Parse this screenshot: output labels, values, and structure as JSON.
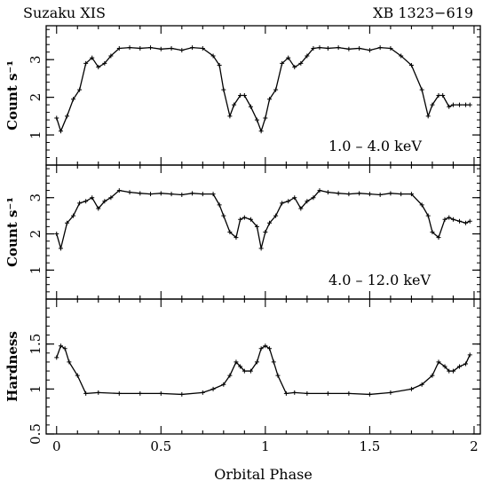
{
  "header": {
    "left_label": "Suzaku XIS",
    "right_label": "XB 1323−619"
  },
  "chart_data": [
    {
      "type": "line",
      "panel": "top",
      "annotation": "1.0 – 4.0 keV",
      "ylabel": "Count s⁻¹",
      "xlim": [
        -0.05,
        2.03
      ],
      "ylim": [
        0.2,
        3.9
      ],
      "yticks": [
        1,
        2,
        3
      ],
      "ytick_labels": [
        "1",
        "2",
        "3"
      ],
      "x": [
        0,
        0.02,
        0.05,
        0.08,
        0.11,
        0.14,
        0.17,
        0.2,
        0.23,
        0.26,
        0.3,
        0.35,
        0.4,
        0.45,
        0.5,
        0.55,
        0.6,
        0.65,
        0.7,
        0.75,
        0.78,
        0.8,
        0.83,
        0.85,
        0.88,
        0.9,
        0.93,
        0.96,
        0.98,
        1,
        1.02,
        1.05,
        1.08,
        1.11,
        1.14,
        1.17,
        1.2,
        1.23,
        1.26,
        1.3,
        1.35,
        1.4,
        1.45,
        1.5,
        1.55,
        1.6,
        1.65,
        1.7,
        1.75,
        1.78,
        1.8,
        1.83,
        1.85,
        1.88,
        1.9,
        1.93,
        1.96,
        1.98
      ],
      "values": [
        1.45,
        1.1,
        1.5,
        1.95,
        2.2,
        2.9,
        3.05,
        2.8,
        2.9,
        3.1,
        3.3,
        3.32,
        3.3,
        3.32,
        3.28,
        3.3,
        3.25,
        3.32,
        3.3,
        3.1,
        2.85,
        2.2,
        1.5,
        1.8,
        2.05,
        2.05,
        1.75,
        1.4,
        1.1,
        1.45,
        1.95,
        2.2,
        2.9,
        3.05,
        2.8,
        2.9,
        3.1,
        3.3,
        3.32,
        3.3,
        3.32,
        3.28,
        3.3,
        3.25,
        3.32,
        3.3,
        3.1,
        2.85,
        2.2,
        1.5,
        1.8,
        2.05,
        2.05,
        1.75,
        1.8,
        1.8,
        1.8,
        1.8
      ]
    },
    {
      "type": "line",
      "panel": "middle",
      "annotation": "4.0 – 12.0 keV",
      "ylabel": "Count s⁻¹",
      "xlim": [
        -0.05,
        2.03
      ],
      "ylim": [
        0.2,
        3.9
      ],
      "yticks": [
        1,
        2,
        3
      ],
      "ytick_labels": [
        "1",
        "2",
        "3"
      ],
      "x": [
        0,
        0.02,
        0.05,
        0.08,
        0.11,
        0.14,
        0.17,
        0.2,
        0.23,
        0.26,
        0.3,
        0.35,
        0.4,
        0.45,
        0.5,
        0.55,
        0.6,
        0.65,
        0.7,
        0.75,
        0.78,
        0.8,
        0.83,
        0.86,
        0.88,
        0.9,
        0.93,
        0.96,
        0.98,
        1,
        1.02,
        1.05,
        1.08,
        1.11,
        1.14,
        1.17,
        1.2,
        1.23,
        1.26,
        1.3,
        1.35,
        1.4,
        1.45,
        1.5,
        1.55,
        1.6,
        1.65,
        1.7,
        1.75,
        1.78,
        1.8,
        1.83,
        1.86,
        1.88,
        1.9,
        1.93,
        1.96,
        1.98
      ],
      "values": [
        2.0,
        1.6,
        2.3,
        2.5,
        2.85,
        2.9,
        3.0,
        2.7,
        2.9,
        3.0,
        3.2,
        3.15,
        3.12,
        3.1,
        3.12,
        3.1,
        3.08,
        3.12,
        3.1,
        3.1,
        2.8,
        2.5,
        2.05,
        1.9,
        2.4,
        2.45,
        2.4,
        2.2,
        1.6,
        2.05,
        2.3,
        2.5,
        2.85,
        2.9,
        3.0,
        2.7,
        2.9,
        3.0,
        3.2,
        3.15,
        3.12,
        3.1,
        3.12,
        3.1,
        3.08,
        3.12,
        3.1,
        3.1,
        2.8,
        2.5,
        2.05,
        1.9,
        2.4,
        2.45,
        2.4,
        2.35,
        2.3,
        2.35
      ]
    },
    {
      "type": "line",
      "panel": "bottom",
      "xlabel": "Orbital Phase",
      "ylabel": "Hardness",
      "xlim": [
        -0.05,
        2.03
      ],
      "ylim": [
        0.5,
        2.0
      ],
      "xticks": [
        0,
        0.5,
        1,
        1.5,
        2
      ],
      "xtick_labels": [
        "0",
        "0.5",
        "1",
        "1.5",
        "2"
      ],
      "yticks": [
        0.5,
        1,
        1.5
      ],
      "ytick_labels": [
        "0.5",
        "1",
        "1.5"
      ],
      "x": [
        0,
        0.02,
        0.04,
        0.06,
        0.1,
        0.14,
        0.2,
        0.3,
        0.4,
        0.5,
        0.6,
        0.7,
        0.75,
        0.8,
        0.83,
        0.86,
        0.88,
        0.9,
        0.93,
        0.96,
        0.98,
        1.0,
        1.02,
        1.04,
        1.06,
        1.1,
        1.14,
        1.2,
        1.3,
        1.4,
        1.5,
        1.6,
        1.7,
        1.75,
        1.8,
        1.83,
        1.86,
        1.88,
        1.9,
        1.93,
        1.96,
        1.98
      ],
      "values": [
        1.35,
        1.48,
        1.45,
        1.3,
        1.15,
        0.95,
        0.96,
        0.95,
        0.95,
        0.95,
        0.94,
        0.96,
        1.0,
        1.05,
        1.15,
        1.3,
        1.25,
        1.2,
        1.2,
        1.3,
        1.45,
        1.48,
        1.45,
        1.3,
        1.15,
        0.95,
        0.96,
        0.95,
        0.95,
        0.95,
        0.94,
        0.96,
        1.0,
        1.05,
        1.15,
        1.3,
        1.25,
        1.2,
        1.2,
        1.25,
        1.28,
        1.38
      ]
    }
  ]
}
